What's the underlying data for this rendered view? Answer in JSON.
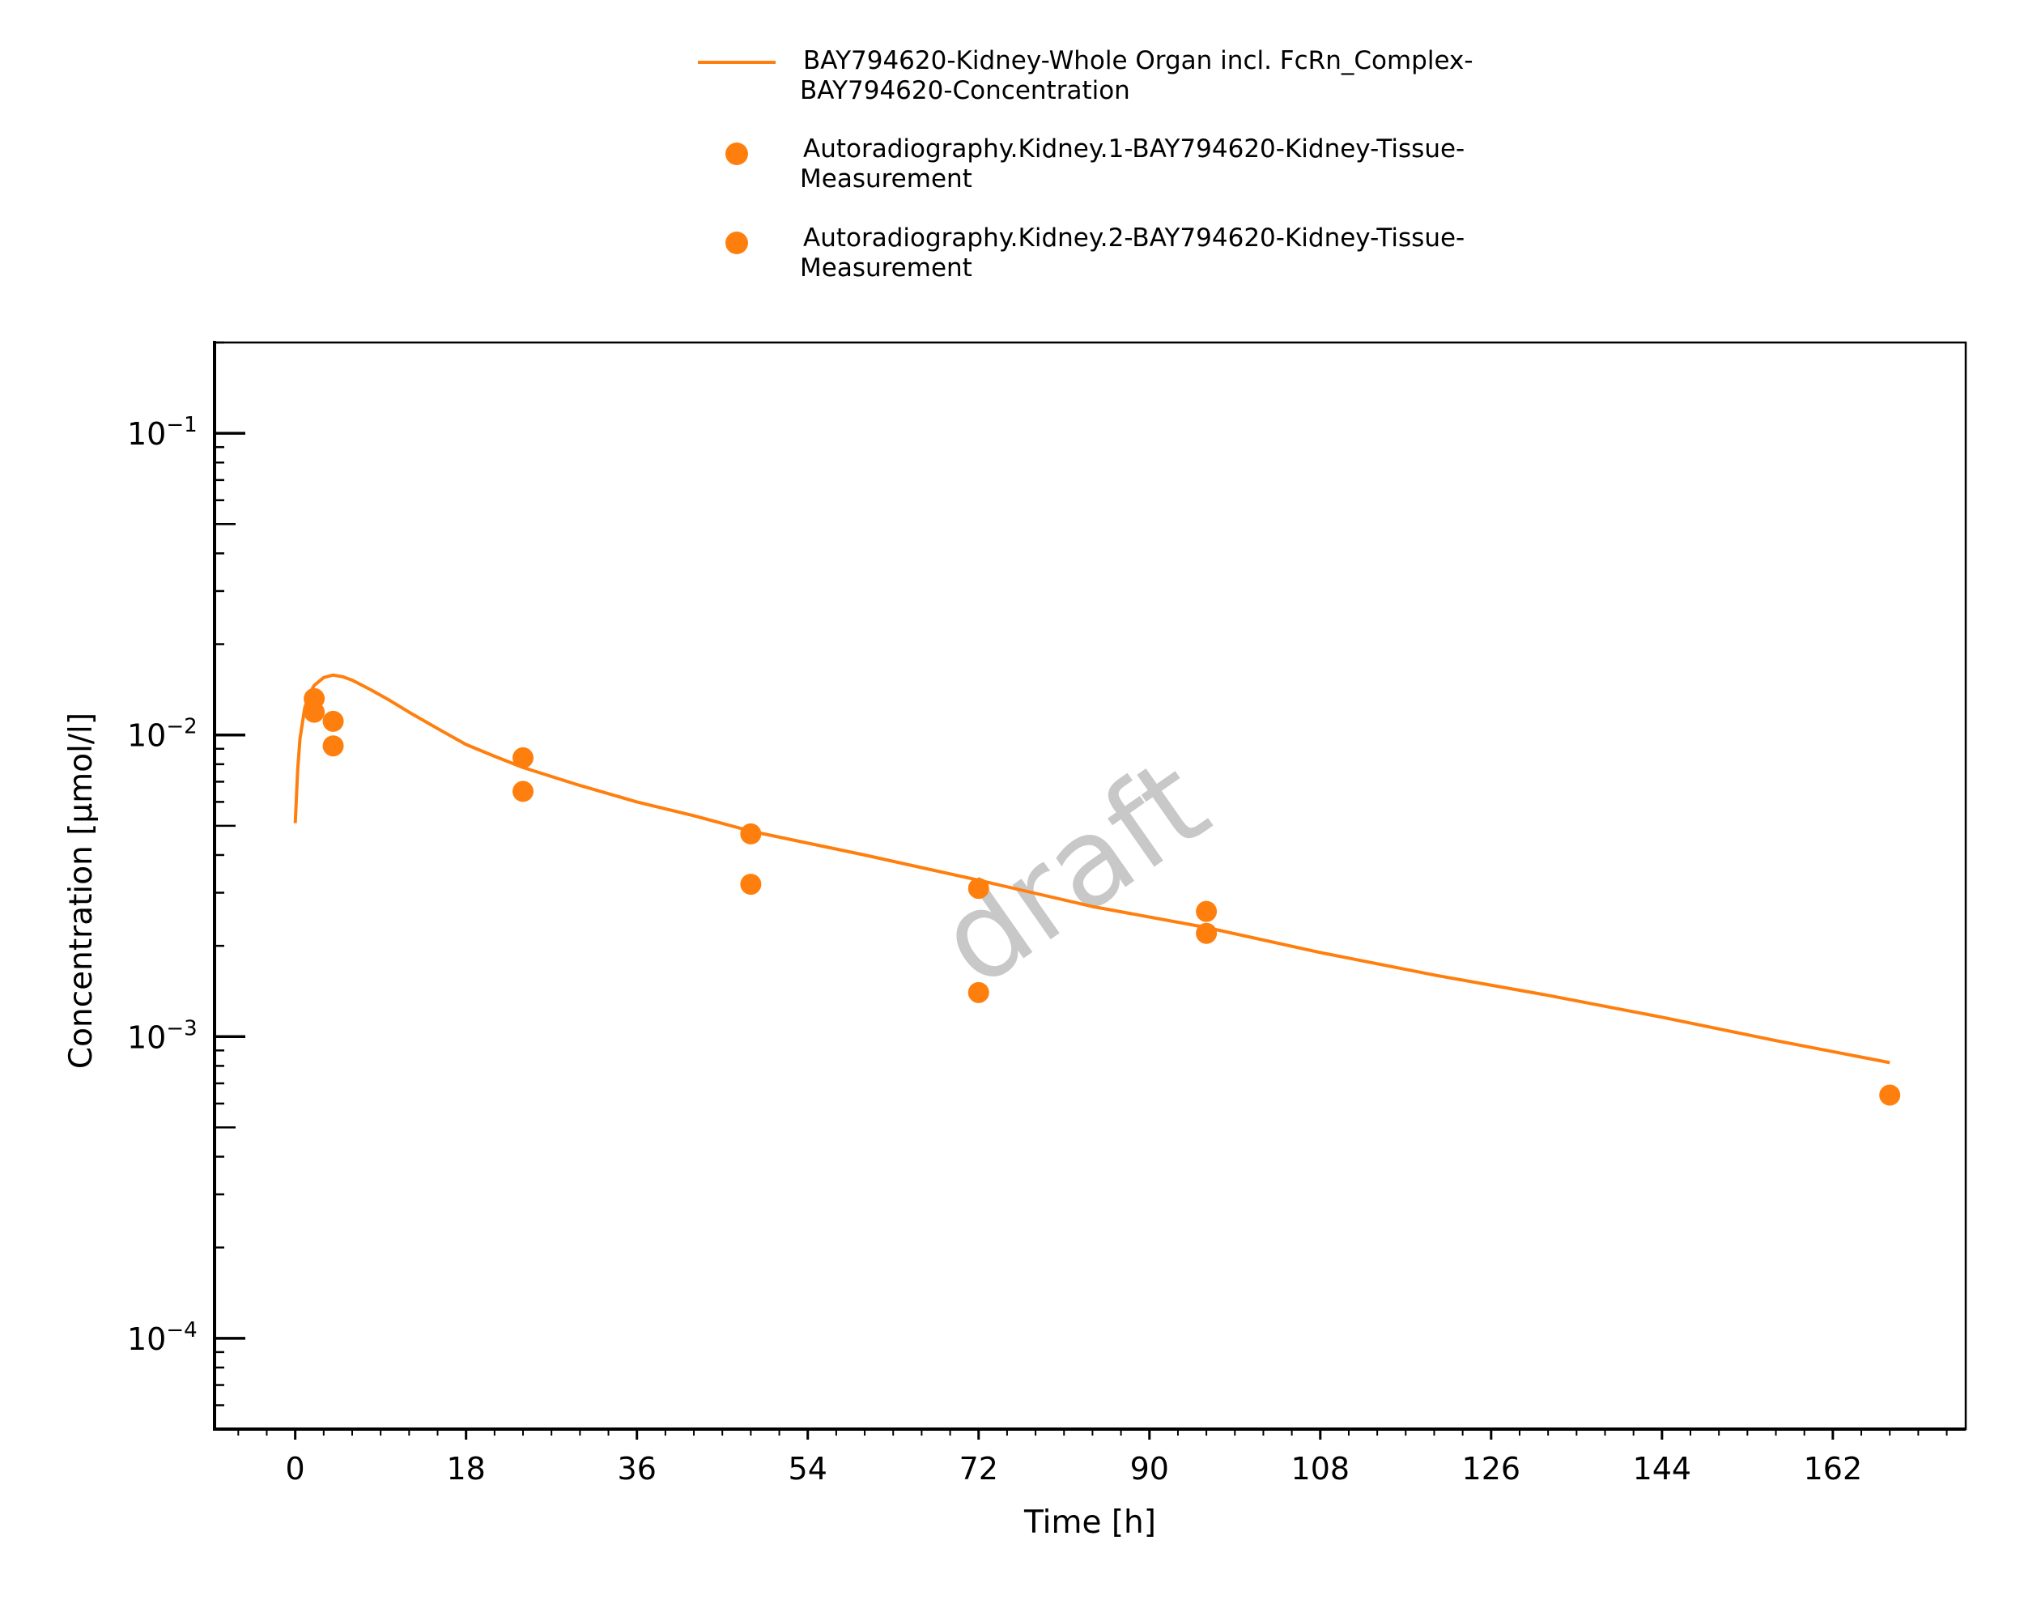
{
  "chart_data": {
    "type": "line",
    "xlabel": "Time [h]",
    "ylabel": "Concentration [µmol/l]",
    "xlim": [
      -8.5,
      176
    ],
    "ylim": [
      5e-05,
      0.2
    ],
    "yscale": "log",
    "x_ticks": [
      "0",
      "18",
      "36",
      "54",
      "72",
      "90",
      "108",
      "126",
      "144",
      "162"
    ],
    "y_ticks": [
      {
        "base": "10",
        "exp": "−1",
        "value": 0.1
      },
      {
        "base": "10",
        "exp": "−2",
        "value": 0.01
      },
      {
        "base": "10",
        "exp": "−3",
        "value": 0.001
      },
      {
        "base": "10",
        "exp": "−4",
        "value": 0.0001
      }
    ],
    "grid": false,
    "legend_position": "top-center",
    "watermark": "draft",
    "color": "#ff7f0e",
    "series": [
      {
        "name": "BAY794620-Kidney-Whole Organ incl. FcRn_Complex-BAY794620-Concentration",
        "legend_lines": [
          "BAY794620-Kidney-Whole Organ incl. FcRn_Complex-",
          "BAY794620-Concentration"
        ],
        "kind": "line",
        "x": [
          0,
          0.25,
          0.5,
          1,
          1.5,
          2,
          3,
          4,
          5,
          6,
          8,
          10,
          12,
          15,
          18,
          21,
          24,
          30,
          36,
          42,
          48,
          60,
          72,
          84,
          96,
          108,
          120,
          132,
          144,
          156,
          168
        ],
        "y": [
          0.0051,
          0.0076,
          0.0097,
          0.0123,
          0.0137,
          0.0146,
          0.0155,
          0.0158,
          0.0156,
          0.0152,
          0.0141,
          0.013,
          0.0119,
          0.0105,
          0.0093,
          0.0085,
          0.0078,
          0.0068,
          0.006,
          0.0054,
          0.0048,
          0.004,
          0.0033,
          0.0027,
          0.0023,
          0.0019,
          0.0016,
          0.00137,
          0.00116,
          0.00097,
          0.00082
        ]
      },
      {
        "name": "Autoradiography.Kidney.1-BAY794620-Kidney-Tissue-Measurement",
        "legend_lines": [
          "Autoradiography.Kidney.1-BAY794620-Kidney-Tissue-",
          "Measurement"
        ],
        "kind": "scatter",
        "x": [
          2,
          4,
          24,
          48,
          72,
          96,
          168
        ],
        "y": [
          0.0132,
          0.0111,
          0.0084,
          0.0047,
          0.0031,
          0.0026,
          0.00064
        ]
      },
      {
        "name": "Autoradiography.Kidney.2-BAY794620-Kidney-Tissue-Measurement",
        "legend_lines": [
          "Autoradiography.Kidney.2-BAY794620-Kidney-Tissue-",
          "Measurement"
        ],
        "kind": "scatter",
        "x": [
          2,
          4,
          24,
          48,
          72,
          96
        ],
        "y": [
          0.0119,
          0.0092,
          0.0065,
          0.0032,
          0.0014,
          0.0022
        ]
      }
    ]
  }
}
